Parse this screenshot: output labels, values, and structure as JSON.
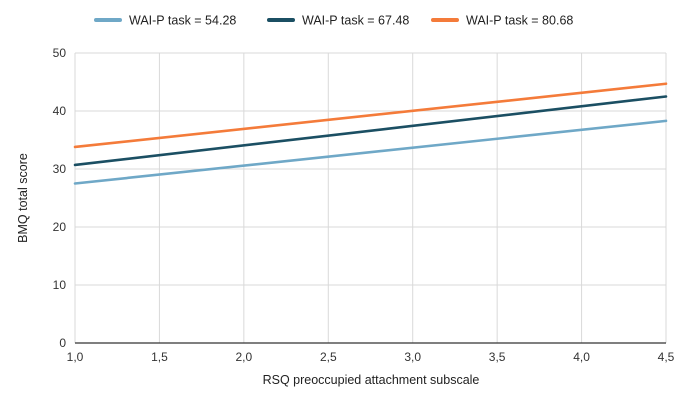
{
  "chart_data": {
    "type": "line",
    "title": "",
    "xlabel": "RSQ preoccupied attachment subscale",
    "ylabel": "BMQ total score",
    "xlim": [
      1.0,
      4.5
    ],
    "ylim": [
      0,
      50
    ],
    "x_ticks": [
      "1,0",
      "1,5",
      "2,0",
      "2,5",
      "3,0",
      "3,5",
      "4,0",
      "4,5"
    ],
    "y_ticks": [
      "0",
      "10",
      "20",
      "30",
      "40",
      "50"
    ],
    "grid": true,
    "legend_position": "top",
    "x": [
      1.0,
      4.5
    ],
    "series": [
      {
        "name": "WAI-P task = 54.28",
        "color": "#6fa8c7",
        "values": [
          27.5,
          38.3
        ]
      },
      {
        "name": "WAI-P task = 67.48",
        "color": "#1b4f63",
        "values": [
          30.7,
          42.5
        ]
      },
      {
        "name": "WAI-P task = 80.68",
        "color": "#f47b3a",
        "values": [
          33.8,
          44.7
        ]
      }
    ]
  }
}
